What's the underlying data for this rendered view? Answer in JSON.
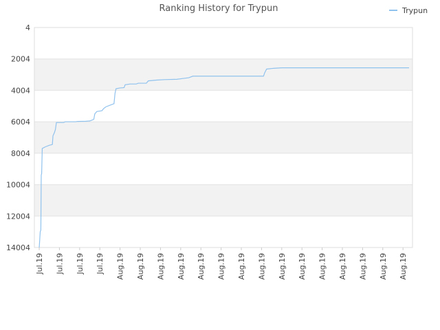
{
  "chart_data": {
    "type": "line",
    "title": "Ranking History for Trypun",
    "series": [
      {
        "name": "Trypun",
        "color": "#90c2ee",
        "x": [
          0.0,
          0.05,
          0.08,
          0.1,
          0.12,
          0.15,
          0.3,
          0.5,
          0.65,
          0.68,
          0.75,
          0.8,
          0.85,
          1.2,
          1.3,
          1.8,
          1.9,
          2.3,
          2.5,
          2.6,
          2.7,
          2.75,
          2.85,
          3.1,
          3.2,
          3.3,
          3.5,
          3.7,
          3.75,
          3.8,
          4.0,
          4.2,
          4.25,
          4.5,
          4.8,
          4.9,
          5.3,
          5.4,
          5.8,
          6.2,
          6.8,
          7.1,
          7.4,
          7.6,
          11.1,
          11.15,
          11.25,
          11.6,
          12.0,
          18.3
        ],
        "values": [
          14004,
          13000,
          12900,
          9400,
          9300,
          7700,
          7600,
          7500,
          7450,
          6900,
          6700,
          6500,
          6050,
          6050,
          6000,
          6000,
          5980,
          5970,
          5950,
          5900,
          5850,
          5500,
          5350,
          5300,
          5150,
          5050,
          4950,
          4850,
          4200,
          3900,
          3850,
          3830,
          3650,
          3600,
          3600,
          3550,
          3550,
          3400,
          3350,
          3320,
          3300,
          3250,
          3200,
          3100,
          3100,
          2900,
          2650,
          2600,
          2570,
          2570
        ]
      }
    ],
    "xlim": [
      -0.24,
      18.47
    ],
    "xticks": [
      {
        "value": 0,
        "label": "Jul.19"
      },
      {
        "value": 1,
        "label": "Jul.19"
      },
      {
        "value": 2,
        "label": "Jul.19"
      },
      {
        "value": 3,
        "label": "Jul.19"
      },
      {
        "value": 4,
        "label": "Aug.19"
      },
      {
        "value": 5,
        "label": "Aug.19"
      },
      {
        "value": 6,
        "label": "Aug.19"
      },
      {
        "value": 7,
        "label": "Aug.19"
      },
      {
        "value": 8,
        "label": "Aug.19"
      },
      {
        "value": 9,
        "label": "Aug.19"
      },
      {
        "value": 10,
        "label": "Aug.19"
      },
      {
        "value": 11,
        "label": "Aug.19"
      },
      {
        "value": 12,
        "label": "Aug.19"
      },
      {
        "value": 13,
        "label": "Aug.19"
      },
      {
        "value": 14,
        "label": "Aug.19"
      },
      {
        "value": 15,
        "label": "Aug.19"
      },
      {
        "value": 16,
        "label": "Aug.19"
      },
      {
        "value": 17,
        "label": "Aug.19"
      },
      {
        "value": 18,
        "label": "Aug.19"
      }
    ],
    "ylim": [
      4,
      14004
    ],
    "y_inverted": true,
    "yticks": [
      4,
      2004,
      4004,
      6004,
      8004,
      10004,
      12004,
      14004
    ],
    "grid": "bands",
    "legend": "top-right"
  }
}
